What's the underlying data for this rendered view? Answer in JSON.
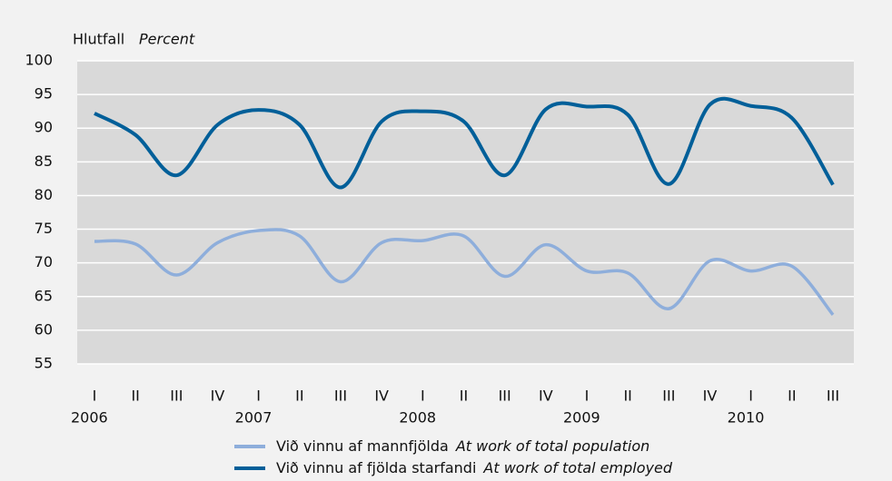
{
  "chart_data": {
    "type": "line",
    "y_label": "Hlutfall",
    "y_label_en": "Percent",
    "categories": [
      "I",
      "II",
      "III",
      "IV",
      "I",
      "II",
      "III",
      "IV",
      "I",
      "II",
      "III",
      "IV",
      "I",
      "II",
      "III",
      "IV",
      "I",
      "II",
      "III"
    ],
    "years": [
      "2006",
      null,
      null,
      null,
      "2007",
      null,
      null,
      null,
      "2008",
      null,
      null,
      null,
      "2009",
      null,
      null,
      null,
      "2010",
      null,
      null
    ],
    "series": [
      {
        "name": "Við vinnu af mannfjölda",
        "name_en": "At work of total population",
        "color": "#8eaedb",
        "values": [
          73.2,
          72.8,
          68.2,
          73,
          74.8,
          74,
          67.2,
          73,
          73.3,
          74,
          68,
          72.7,
          68.8,
          68.5,
          63.2,
          70.3,
          68.8,
          69.5,
          62.3
        ]
      },
      {
        "name": "Við vinnu af fjölda starfandi",
        "name_en": "At work of total employed",
        "color": "#005f99",
        "values": [
          92.2,
          89,
          83,
          90.5,
          92.7,
          90.5,
          81.2,
          91,
          92.5,
          91,
          83,
          92.8,
          93.2,
          92,
          81.7,
          93.5,
          93.3,
          91.5,
          81.6
        ]
      }
    ],
    "ylim": [
      55,
      100
    ],
    "yticks": [
      55,
      60,
      65,
      70,
      75,
      80,
      85,
      90,
      95,
      100
    ],
    "grid": true
  }
}
